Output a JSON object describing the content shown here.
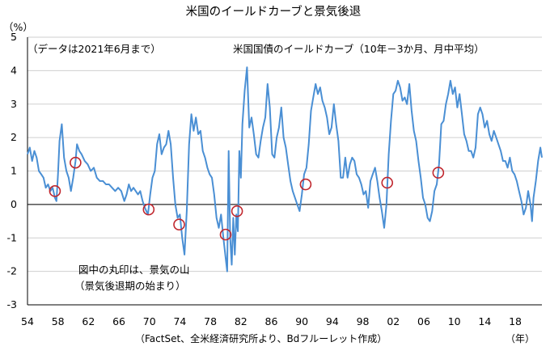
{
  "chart_data": {
    "type": "line",
    "title": "米国のイールドカーブと景気後退",
    "ylabel": "（%）",
    "xunit": "（年）",
    "ylim": [
      -3,
      5
    ],
    "yticks": [
      -3,
      -2,
      -1,
      0,
      1,
      2,
      3,
      4,
      5
    ],
    "xlim": [
      1954,
      2021.5
    ],
    "xticks": [
      1954,
      1958,
      1962,
      1966,
      1970,
      1974,
      1978,
      1982,
      1986,
      1990,
      1994,
      1998,
      2002,
      2006,
      2010,
      2014,
      2018
    ],
    "xtick_labels": [
      "54",
      "58",
      "62",
      "66",
      "70",
      "74",
      "78",
      "82",
      "86",
      "90",
      "94",
      "98",
      "02",
      "06",
      "10",
      "14",
      "18"
    ],
    "legend": "米国国債のイールドカーブ（10年－3か月、月中平均）",
    "annotations": {
      "period_note": "（データは2021年6月まで）",
      "circle_note_line1": "図中の丸印は、景気の山",
      "circle_note_line2": "（景気後退期の始まり）",
      "source": "（FactSet、全米経済研究所より、Bdフルーレット作成）"
    },
    "series": [
      {
        "name": "米国国債のイールドカーブ（10年－3か月、月中平均）",
        "color": "#4a8fd4",
        "x": [
          1954.0,
          1954.3,
          1954.6,
          1954.9,
          1955.2,
          1955.5,
          1955.8,
          1956.1,
          1956.4,
          1956.7,
          1957.0,
          1957.3,
          1957.6,
          1957.8,
          1958.0,
          1958.2,
          1958.5,
          1958.8,
          1959.1,
          1959.4,
          1959.7,
          1960.0,
          1960.3,
          1960.5,
          1960.8,
          1961.1,
          1961.5,
          1961.9,
          1962.3,
          1962.7,
          1963.1,
          1963.5,
          1963.9,
          1964.3,
          1964.7,
          1965.1,
          1965.5,
          1965.9,
          1966.3,
          1966.7,
          1967.0,
          1967.3,
          1967.6,
          1967.9,
          1968.2,
          1968.5,
          1968.8,
          1969.1,
          1969.4,
          1969.8,
          1970.1,
          1970.4,
          1970.7,
          1971.0,
          1971.3,
          1971.6,
          1971.9,
          1972.2,
          1972.5,
          1972.8,
          1973.1,
          1973.4,
          1973.7,
          1974.0,
          1974.3,
          1974.6,
          1974.9,
          1975.2,
          1975.5,
          1975.8,
          1976.1,
          1976.4,
          1976.7,
          1977.0,
          1977.3,
          1977.6,
          1977.9,
          1978.2,
          1978.5,
          1978.8,
          1979.1,
          1979.4,
          1979.7,
          1980.0,
          1980.2,
          1980.4,
          1980.6,
          1980.8,
          1981.0,
          1981.2,
          1981.4,
          1981.6,
          1981.8,
          1982.0,
          1982.2,
          1982.5,
          1982.8,
          1983.1,
          1983.4,
          1983.7,
          1984.0,
          1984.3,
          1984.6,
          1984.9,
          1985.2,
          1985.5,
          1985.8,
          1986.1,
          1986.4,
          1986.7,
          1987.0,
          1987.3,
          1987.6,
          1987.9,
          1988.2,
          1988.5,
          1988.8,
          1989.1,
          1989.4,
          1989.7,
          1990.0,
          1990.3,
          1990.6,
          1990.9,
          1991.2,
          1991.5,
          1991.8,
          1992.1,
          1992.4,
          1992.7,
          1993.0,
          1993.3,
          1993.6,
          1993.9,
          1994.2,
          1994.5,
          1994.8,
          1995.1,
          1995.4,
          1995.7,
          1996.0,
          1996.3,
          1996.6,
          1996.9,
          1997.2,
          1997.5,
          1997.8,
          1998.1,
          1998.4,
          1998.7,
          1999.0,
          1999.3,
          1999.6,
          1999.9,
          2000.2,
          2000.5,
          2000.8,
          2001.1,
          2001.4,
          2001.7,
          2002.0,
          2002.3,
          2002.6,
          2002.9,
          2003.2,
          2003.5,
          2003.8,
          2004.1,
          2004.4,
          2004.7,
          2005.0,
          2005.3,
          2005.6,
          2005.9,
          2006.2,
          2006.5,
          2006.8,
          2007.1,
          2007.4,
          2007.7,
          2008.0,
          2008.3,
          2008.6,
          2008.9,
          2009.2,
          2009.5,
          2009.8,
          2010.1,
          2010.4,
          2010.7,
          2011.0,
          2011.3,
          2011.6,
          2011.9,
          2012.2,
          2012.5,
          2012.8,
          2013.1,
          2013.4,
          2013.7,
          2014.0,
          2014.3,
          2014.6,
          2014.9,
          2015.2,
          2015.5,
          2015.8,
          2016.1,
          2016.4,
          2016.7,
          2017.0,
          2017.3,
          2017.6,
          2017.9,
          2018.2,
          2018.5,
          2018.8,
          2019.1,
          2019.4,
          2019.7,
          2020.0,
          2020.2,
          2020.4,
          2020.7,
          2021.0,
          2021.3,
          2021.5
        ],
        "y": [
          1.5,
          1.7,
          1.3,
          1.6,
          1.4,
          1.0,
          0.9,
          0.8,
          0.5,
          0.6,
          0.4,
          0.5,
          0.2,
          0.1,
          0.9,
          1.9,
          2.4,
          1.4,
          1.0,
          0.8,
          0.4,
          0.8,
          1.3,
          1.8,
          1.6,
          1.5,
          1.3,
          1.2,
          1.0,
          1.1,
          0.8,
          0.7,
          0.7,
          0.6,
          0.6,
          0.5,
          0.4,
          0.5,
          0.4,
          0.1,
          0.3,
          0.6,
          0.4,
          0.5,
          0.4,
          0.3,
          0.4,
          0.1,
          -0.1,
          -0.3,
          0.3,
          0.8,
          1.0,
          1.8,
          2.1,
          1.5,
          1.7,
          1.8,
          2.2,
          1.8,
          0.8,
          0.0,
          -0.4,
          -0.3,
          -1.0,
          -1.5,
          -0.2,
          1.8,
          2.7,
          2.2,
          2.6,
          2.1,
          2.2,
          1.6,
          1.4,
          1.1,
          0.9,
          0.8,
          0.3,
          -0.4,
          -0.7,
          -0.3,
          -1.0,
          -1.6,
          -2.0,
          1.6,
          -1.0,
          -1.8,
          -0.4,
          -1.5,
          -0.3,
          -0.8,
          1.6,
          0.8,
          2.4,
          3.4,
          4.1,
          2.3,
          2.6,
          2.1,
          1.5,
          1.4,
          1.9,
          2.3,
          2.6,
          3.6,
          2.9,
          1.5,
          1.4,
          2.0,
          2.3,
          2.9,
          2.0,
          1.7,
          1.2,
          0.7,
          0.4,
          0.2,
          0.0,
          -0.2,
          0.3,
          0.9,
          1.1,
          1.8,
          2.8,
          3.2,
          3.6,
          3.3,
          3.5,
          3.1,
          2.9,
          2.6,
          2.1,
          2.3,
          3.0,
          2.4,
          1.9,
          0.8,
          0.8,
          1.4,
          0.8,
          1.2,
          1.4,
          1.3,
          0.9,
          0.8,
          0.6,
          0.3,
          0.4,
          -0.1,
          0.7,
          0.9,
          1.1,
          0.7,
          0.2,
          -0.2,
          -0.7,
          0.0,
          1.5,
          2.5,
          3.3,
          3.4,
          3.7,
          3.5,
          3.1,
          3.2,
          3.0,
          3.6,
          2.8,
          2.2,
          1.9,
          1.3,
          0.8,
          0.2,
          0.0,
          -0.4,
          -0.5,
          -0.2,
          0.4,
          0.6,
          1.2,
          2.4,
          2.5,
          3.0,
          3.3,
          3.7,
          3.3,
          3.5,
          2.9,
          3.3,
          2.7,
          2.1,
          1.9,
          1.6,
          1.6,
          1.4,
          1.7,
          2.7,
          2.9,
          2.7,
          2.3,
          2.5,
          2.1,
          1.9,
          2.2,
          2.0,
          1.8,
          1.6,
          1.3,
          1.3,
          1.1,
          1.4,
          1.0,
          0.9,
          0.7,
          0.4,
          0.1,
          -0.3,
          -0.1,
          0.4,
          0.0,
          -0.5,
          0.2,
          0.7,
          1.3,
          1.7,
          1.4
        ]
      }
    ],
    "recession_markers": {
      "label": "景気の山",
      "points": [
        {
          "x": 1957.6,
          "y": 0.4
        },
        {
          "x": 1960.3,
          "y": 1.25
        },
        {
          "x": 1969.9,
          "y": -0.15
        },
        {
          "x": 1973.9,
          "y": -0.6
        },
        {
          "x": 1980.0,
          "y": -0.9
        },
        {
          "x": 1981.5,
          "y": -0.2
        },
        {
          "x": 1990.5,
          "y": 0.6
        },
        {
          "x": 2001.2,
          "y": 0.65
        },
        {
          "x": 2007.9,
          "y": 0.95
        }
      ]
    }
  }
}
